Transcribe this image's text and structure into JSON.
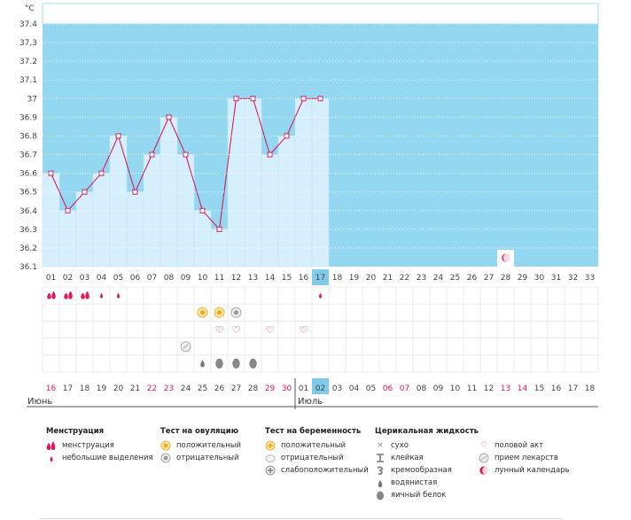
{
  "chart_data": {
    "type": "bar",
    "unit": "°C",
    "ylim": [
      36.1,
      37.4
    ],
    "yticks": [
      "37.4",
      "37.3",
      "37.2",
      "37.1",
      "37",
      "36.9",
      "36.8",
      "36.7",
      "36.6",
      "36.5",
      "36.4",
      "36.3",
      "36.2",
      "36.1"
    ],
    "days": [
      "01",
      "02",
      "03",
      "04",
      "05",
      "06",
      "07",
      "08",
      "09",
      "10",
      "11",
      "12",
      "13",
      "14",
      "15",
      "16",
      "17",
      "18",
      "19",
      "20",
      "21",
      "22",
      "23",
      "24",
      "25",
      "26",
      "27",
      "28",
      "29",
      "30",
      "31",
      "32",
      "33"
    ],
    "current_day_index": 16,
    "temperatures": [
      36.6,
      36.4,
      36.5,
      36.6,
      36.8,
      36.5,
      36.7,
      36.9,
      36.7,
      36.4,
      36.3,
      37.0,
      37.0,
      36.7,
      36.8,
      37.0,
      37.0
    ],
    "moon_day_index": 27,
    "dates": [
      "16",
      "17",
      "18",
      "19",
      "20",
      "21",
      "22",
      "23",
      "24",
      "25",
      "26",
      "27",
      "28",
      "29",
      "30",
      "01",
      "02",
      "03",
      "04",
      "05",
      "06",
      "07",
      "08",
      "09",
      "10",
      "11",
      "12",
      "13",
      "14",
      "15",
      "16",
      "17",
      "18"
    ],
    "red_date_indices": [
      0,
      6,
      7,
      13,
      14,
      20,
      21,
      27,
      28
    ],
    "highlight_date_index": 16,
    "months": [
      "Июнь",
      "Июль"
    ],
    "markers": {
      "menstruation": [
        {
          "i": 0,
          "t": "heavy"
        },
        {
          "i": 1,
          "t": "heavy"
        },
        {
          "i": 2,
          "t": "heavy"
        },
        {
          "i": 3,
          "t": "light"
        },
        {
          "i": 4,
          "t": "light"
        },
        {
          "i": 16,
          "t": "light"
        }
      ],
      "ovulation": [
        {
          "i": 9,
          "t": "positive"
        },
        {
          "i": 10,
          "t": "positive"
        },
        {
          "i": 11,
          "t": "negative"
        }
      ],
      "intercourse": [
        10,
        11,
        13,
        15
      ],
      "medication": [
        8
      ],
      "fluid": [
        {
          "i": 9,
          "t": "watery"
        },
        {
          "i": 10,
          "t": "egg"
        },
        {
          "i": 11,
          "t": "egg"
        },
        {
          "i": 12,
          "t": "egg"
        }
      ]
    }
  },
  "legend": {
    "menstruation": {
      "title": "Менструация",
      "items": [
        "менструация",
        "небольшие выделения"
      ]
    },
    "ovulation": {
      "title": "Тест на овуляцию",
      "items": [
        "положительный",
        "отрицательный"
      ]
    },
    "pregnancy": {
      "title": "Тест на беременность",
      "items": [
        "положительный",
        "отрицательный",
        "слабоположительный"
      ]
    },
    "fluid": {
      "title": "Церикальная жидкость",
      "items": [
        "сухо",
        "клейкая",
        "кремообразная",
        "водянистая",
        "яичный белок"
      ]
    },
    "other": {
      "items": [
        "половой акт",
        "прием лекарств",
        "лунный календарь"
      ]
    }
  },
  "colors": {
    "sky": "#93d7f1",
    "bar": "#d6effc",
    "bar_edge": "#8ccbe8",
    "line": "#d51f5c",
    "highlight": "#7fcbe8",
    "grid": "#ececec"
  }
}
